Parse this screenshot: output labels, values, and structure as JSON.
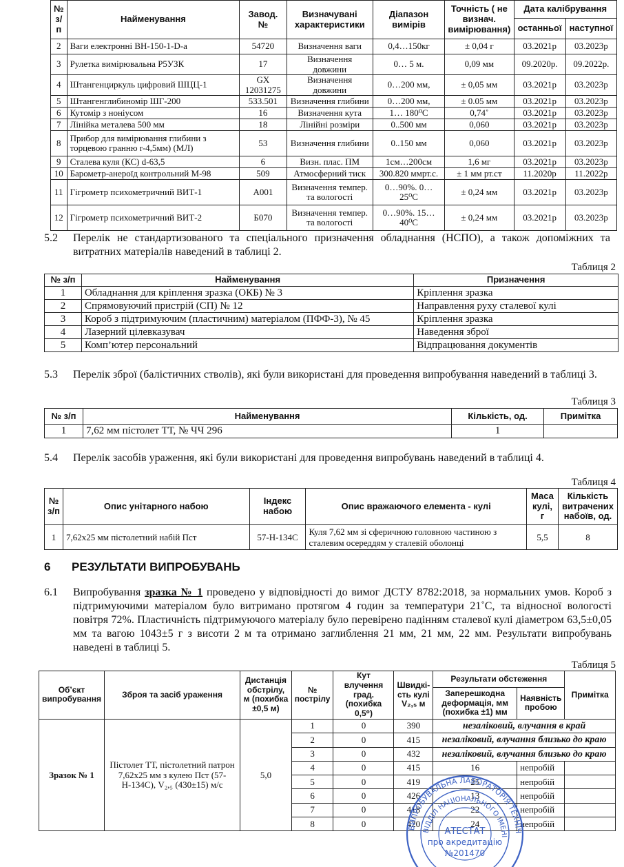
{
  "table1": {
    "headers": {
      "num": "№ з/п",
      "name": "Найменування",
      "serial": "Завод. №",
      "chars": "Визначувані характеристики",
      "range": "Діапазон вимірів",
      "accuracy": "Точність ( не визнач. вимірювання)",
      "calib": "Дата калібрування",
      "last": "останньої",
      "next": "наступної"
    },
    "rows": [
      {
        "n": "2",
        "name": "Ваги електронні ВН-150-1-D-а",
        "serial": "54720",
        "chars": "Визначення ваги",
        "range": "0,4…150кг",
        "acc": "± 0,04 г",
        "last": "03.2021р",
        "next": "03.2023р"
      },
      {
        "n": "3",
        "name": "Рулетка вимірювальна Р5УЗК",
        "serial": "17",
        "chars": "Визначення довжини",
        "range": "0… 5 м.",
        "acc": "0,09 мм",
        "last": "09.2020р.",
        "next": "09.2022р."
      },
      {
        "n": "4",
        "name": "Штангенциркуль цифровий ШЦЦ-1",
        "serial": "GX 12031275",
        "chars": "Визначення довжини",
        "range": "0…200 мм,",
        "acc": "± 0,05 мм",
        "last": "03.2021р",
        "next": "03.2023р"
      },
      {
        "n": "5",
        "name": "Штангенглибиномір ШГ-200",
        "serial": "533.501",
        "chars": "Визначення глибини",
        "range": "0…200 мм,",
        "acc": "± 0.05 мм",
        "last": "03.2021р",
        "next": "03.2023р"
      },
      {
        "n": "6",
        "name": "Кутомір з ноніусом",
        "serial": "16",
        "chars": "Визначення кута",
        "range": "1… 180⁰С",
        "acc": "0,74˚",
        "last": "03.2021р",
        "next": "03.2023р"
      },
      {
        "n": "7",
        "name": "Лінійка металева 500 мм",
        "serial": "18",
        "chars": "Лінійні розміри",
        "range": "0..500 мм",
        "acc": "0,060",
        "last": "03.2021р",
        "next": "03.2023р"
      },
      {
        "n": "8",
        "name": "Прибор для вимірювання глибини з торцевою гранню r-4,5мм) (МЛ)",
        "serial": "53",
        "chars": "Визначення глибини",
        "range": "0..150 мм",
        "acc": "0,060",
        "last": "03.2021р",
        "next": "03.2023р"
      },
      {
        "n": "9",
        "name": "Сталева куля (КС) d-63,5",
        "serial": "6",
        "chars": "Визн. плас. ПМ",
        "range": "1см…200см",
        "acc": "1,6 мг",
        "last": "03.2021р",
        "next": "03.2023р"
      },
      {
        "n": "10",
        "name": "Барометр-анероїд контрольний М-98",
        "serial": "509",
        "chars": "Атмосферний тиск",
        "range": "300.820 ммрт.с.",
        "acc": "± 1 мм рт.ст",
        "last": "11.2020р",
        "next": "11.2022р"
      },
      {
        "n": "11",
        "name": "Гігрометр психометричний ВИТ-1",
        "serial": "А001",
        "chars": "Визначення темпер. та вологості",
        "range": "0…90%. 0…25⁰С",
        "acc": "± 0,24 мм",
        "last": "03.2021р",
        "next": "03.2023р"
      },
      {
        "n": "12",
        "name": "Гігрометр психометричний ВИТ-2",
        "serial": "Б070",
        "chars": "Визначення темпер. та вологості",
        "range": "0…90%. 15…40⁰С",
        "acc": "± 0,24 мм",
        "last": "03.2021р",
        "next": "03.2023р"
      }
    ]
  },
  "s52": {
    "num": "5.2",
    "text": "Перелік не стандартизованого та спеціального призначення обладнання (НСПО), а також допоміжних та витратних матеріалів наведений в таблиці 2."
  },
  "table2": {
    "caption": "Таблиця 2",
    "headers": {
      "num": "№ з/п",
      "name": "Найменування",
      "purpose": "Призначення"
    },
    "rows": [
      {
        "n": "1",
        "name": "Обладнання для кріплення зразка (ОКБ) № 3",
        "purpose": "Кріплення зразка"
      },
      {
        "n": "2",
        "name": "Спрямовуючий пристрій (СП) № 12",
        "purpose": "Направлення руху сталевої кулі"
      },
      {
        "n": "3",
        "name": "Короб з підтримуючим (пластичним) матеріалом (ПФФ-3), № 45",
        "purpose": "Кріплення зразка"
      },
      {
        "n": "4",
        "name": "Лазерний цілевказувач",
        "purpose": "Наведення зброї"
      },
      {
        "n": "5",
        "name": "Комп’ютер персональний",
        "purpose": "Відпрацювання документів"
      }
    ]
  },
  "s53": {
    "num": "5.3",
    "text": "Перелік зброї (балістичних стволів), які були використані для проведення випробування наведений в таблиці 3."
  },
  "table3": {
    "caption": "Таблиця 3",
    "headers": {
      "num": "№ з/п",
      "name": "Найменування",
      "qty": "Кількість, од.",
      "note": "Примітка"
    },
    "rows": [
      {
        "n": "1",
        "name": "7,62 мм пістолет ТТ, № ЧЧ 296",
        "qty": "1",
        "note": ""
      }
    ]
  },
  "s54": {
    "num": "5.4",
    "text": "Перелік засобів ураження, які були використані для проведення випробувань наведений в таблиці 4."
  },
  "table4": {
    "caption": "Таблиця 4",
    "headers": {
      "num": "№ з/п",
      "desc": "Опис унітарного набою",
      "index": "Індекс набою",
      "bullet": "Опис вражаючого елемента - кулі",
      "mass": "Маса кулі, г",
      "count": "Кількість витрачених набоїв, од."
    },
    "rows": [
      {
        "n": "1",
        "desc": "7,62х25 мм пістолетний набій Пст",
        "index": "57-Н-134С",
        "bullet": "Куля 7,62 мм зі сферичною головною частиною з сталевим осереддям у сталевій оболонці",
        "mass": "5,5",
        "count": "8"
      }
    ]
  },
  "section6": {
    "num": "6",
    "title": "РЕЗУЛЬТАТИ ВИПРОБУВАНЬ"
  },
  "s61": {
    "num": "6.1",
    "pre": "Випробування ",
    "link": "зразка № 1",
    "text": " проведено у відповідності до вимог ДСТУ 8782:2018, за нормальних умов. Короб з підтримуючими матеріалом було витримано протягом 4 годин за температури 21˚С, та відносної вологості повітря 72%. Пластичність підтримуючого матеріалу було перевірено падінням сталевої кулі діаметром 63,5±0,05 мм та вагою 1043±5 г з висоти 2 м та отримано заглиблення 21 мм, 21 мм, 22 мм. Результати випробувань наведені в таблиці 5."
  },
  "table5": {
    "caption": "Таблиця 5",
    "headers": {
      "object": "Об’єкт випробування",
      "weapon": "Зброя та засіб ураження",
      "distance": "Дистанція обстрілу, м (похибка ±0,5 м)",
      "shot": "№ пострілу",
      "angle": "Кут влучення град. (похибка 0,5⁰)",
      "speed": "Швидкі- сть кулі V₂,₅ м",
      "results": "Результати обстеження",
      "deform": "Заперешкодна деформація, мм (похибка ±1) мм",
      "perf": "Наявність пробою",
      "note": "Примітка"
    },
    "object": "Зразок № 1",
    "weapon": "Пістолет ТТ, пістолетний патрон 7,62х25 мм з кулею Пст (57-Н-134С), V₂,₅ (430±15) м/с",
    "distance": "5,0",
    "rows": [
      {
        "shot": "1",
        "angle": "0",
        "speed": "390",
        "deform": "",
        "perf": "",
        "note": "",
        "merged": "незаліковий, влучання в край"
      },
      {
        "shot": "2",
        "angle": "0",
        "speed": "415",
        "deform": "",
        "perf": "",
        "note": "",
        "merged": "незаліковий, влучання близько до краю"
      },
      {
        "shot": "3",
        "angle": "0",
        "speed": "432",
        "deform": "",
        "perf": "",
        "note": "",
        "merged": "незаліковий, влучання близько до краю"
      },
      {
        "shot": "4",
        "angle": "0",
        "speed": "415",
        "deform": "16",
        "perf": "непробій",
        "note": "",
        "merged": ""
      },
      {
        "shot": "5",
        "angle": "0",
        "speed": "419",
        "deform": "25",
        "perf": "непробій",
        "note": "",
        "merged": ""
      },
      {
        "shot": "6",
        "angle": "0",
        "speed": "426",
        "deform": "13",
        "perf": "непробій",
        "note": "",
        "merged": ""
      },
      {
        "shot": "7",
        "angle": "0",
        "speed": "418",
        "deform": "22",
        "perf": "непробій",
        "note": "",
        "merged": ""
      },
      {
        "shot": "8",
        "angle": "0",
        "speed": "420",
        "deform": "24",
        "perf": "непробій",
        "note": "",
        "merged": ""
      }
    ]
  },
  "stamp": {
    "color": "#3d62c4",
    "outer_text": "ВИПРОБУВАЛЬНА ЛАБОРАТОРІЯ ТЕХНІЧНИЙ ЦЕНТР ЗАХИСНИХ ВИРОБІВ",
    "inner_text": "ВІДДІЛ НАЦІОНАЛЬНОГО ІМЕНІ ІВАНА ЧЕРНЯХОВСЬКОГО",
    "center_word": "АТЕСТАТ",
    "center_line": "про акредитацію",
    "center_num": "№201470"
  }
}
